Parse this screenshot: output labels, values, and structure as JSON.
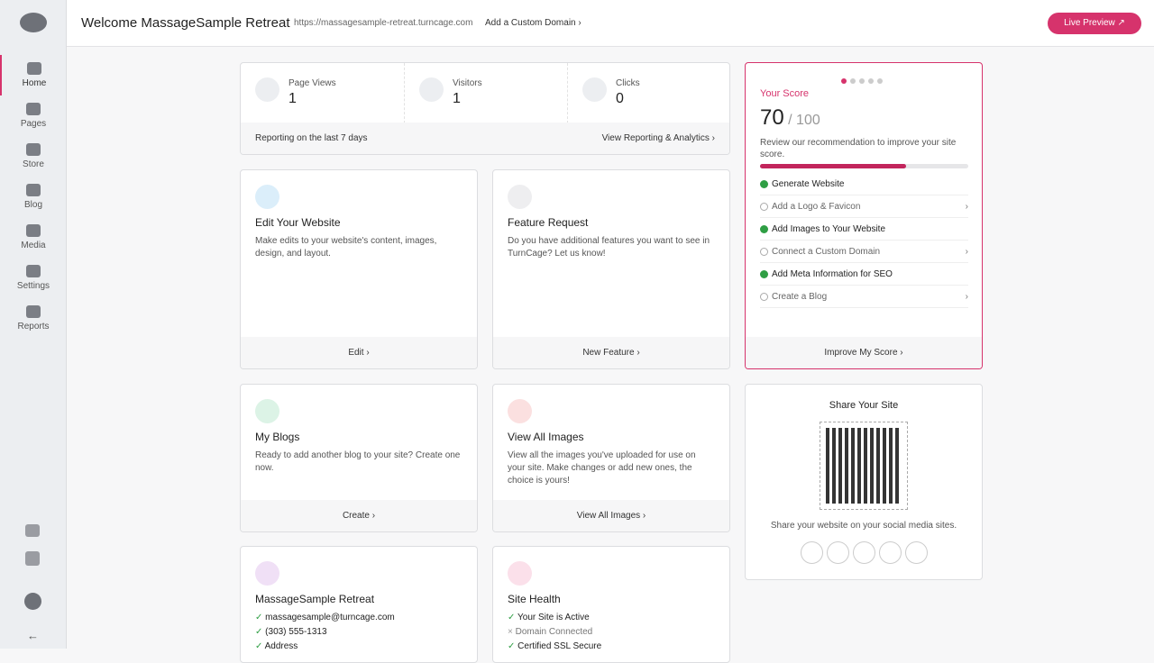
{
  "sidebar": {
    "items": [
      "Home",
      "Pages",
      "Store",
      "Blog",
      "Media",
      "Settings",
      "Reports"
    ]
  },
  "header": {
    "title": "Welcome MassageSample Retreat",
    "url": "https://massagesample-retreat.turncage.com",
    "domain_link": "Add a Custom Domain",
    "preview": "Live Preview"
  },
  "stats": {
    "items": [
      {
        "label": "Page Views",
        "value": 1
      },
      {
        "label": "Visitors",
        "value": 1
      },
      {
        "label": "Clicks",
        "value": 0
      }
    ],
    "note": "Reporting on the last 7 days",
    "link": "View Reporting & Analytics"
  },
  "cards": [
    {
      "title": "Edit Your Website",
      "text": "Make edits to your website's content, images, design, and layout.",
      "action": "Edit"
    },
    {
      "title": "Feature Request",
      "text": "Do you have additional features you want to see in TurnCage? Let us know!",
      "action": "New Feature"
    },
    {
      "title": "My Blogs",
      "text": "Ready to add another blog to your site? Create one now.",
      "action": "Create"
    },
    {
      "title": "View All Images",
      "text": "View all the images you've uploaded for use on your site. Make changes or add new ones, the choice is yours!",
      "action": "View All Images"
    }
  ],
  "score": {
    "title": "Your Score",
    "value": 70,
    "max": {
      "value": 100,
      "label": "/ 100"
    },
    "text": "Review our recommendation to improve your site score.",
    "checklist": [
      {
        "label": "Generate Website",
        "done": true
      },
      {
        "label": "Add a Logo & Favicon",
        "done": false
      },
      {
        "label": "Add Images to Your Website",
        "done": true
      },
      {
        "label": "Connect a Custom Domain",
        "done": false
      },
      {
        "label": "Add Meta Information for SEO",
        "done": true
      },
      {
        "label": "Create a Blog",
        "done": false
      }
    ],
    "action": "Improve My Score"
  },
  "share": {
    "title": "Share Your Site",
    "text": "Share your website on your social media sites."
  },
  "contact": {
    "title": "MassageSample Retreat",
    "items": [
      "massagesample@turncage.com",
      "(303) 555-1313",
      "Address"
    ]
  },
  "health": {
    "title": "Site Health",
    "items": [
      {
        "label": "Your Site is Active",
        "ok": true
      },
      {
        "label": "Domain Connected",
        "ok": false
      },
      {
        "label": "Certified SSL Secure",
        "ok": true
      }
    ]
  }
}
